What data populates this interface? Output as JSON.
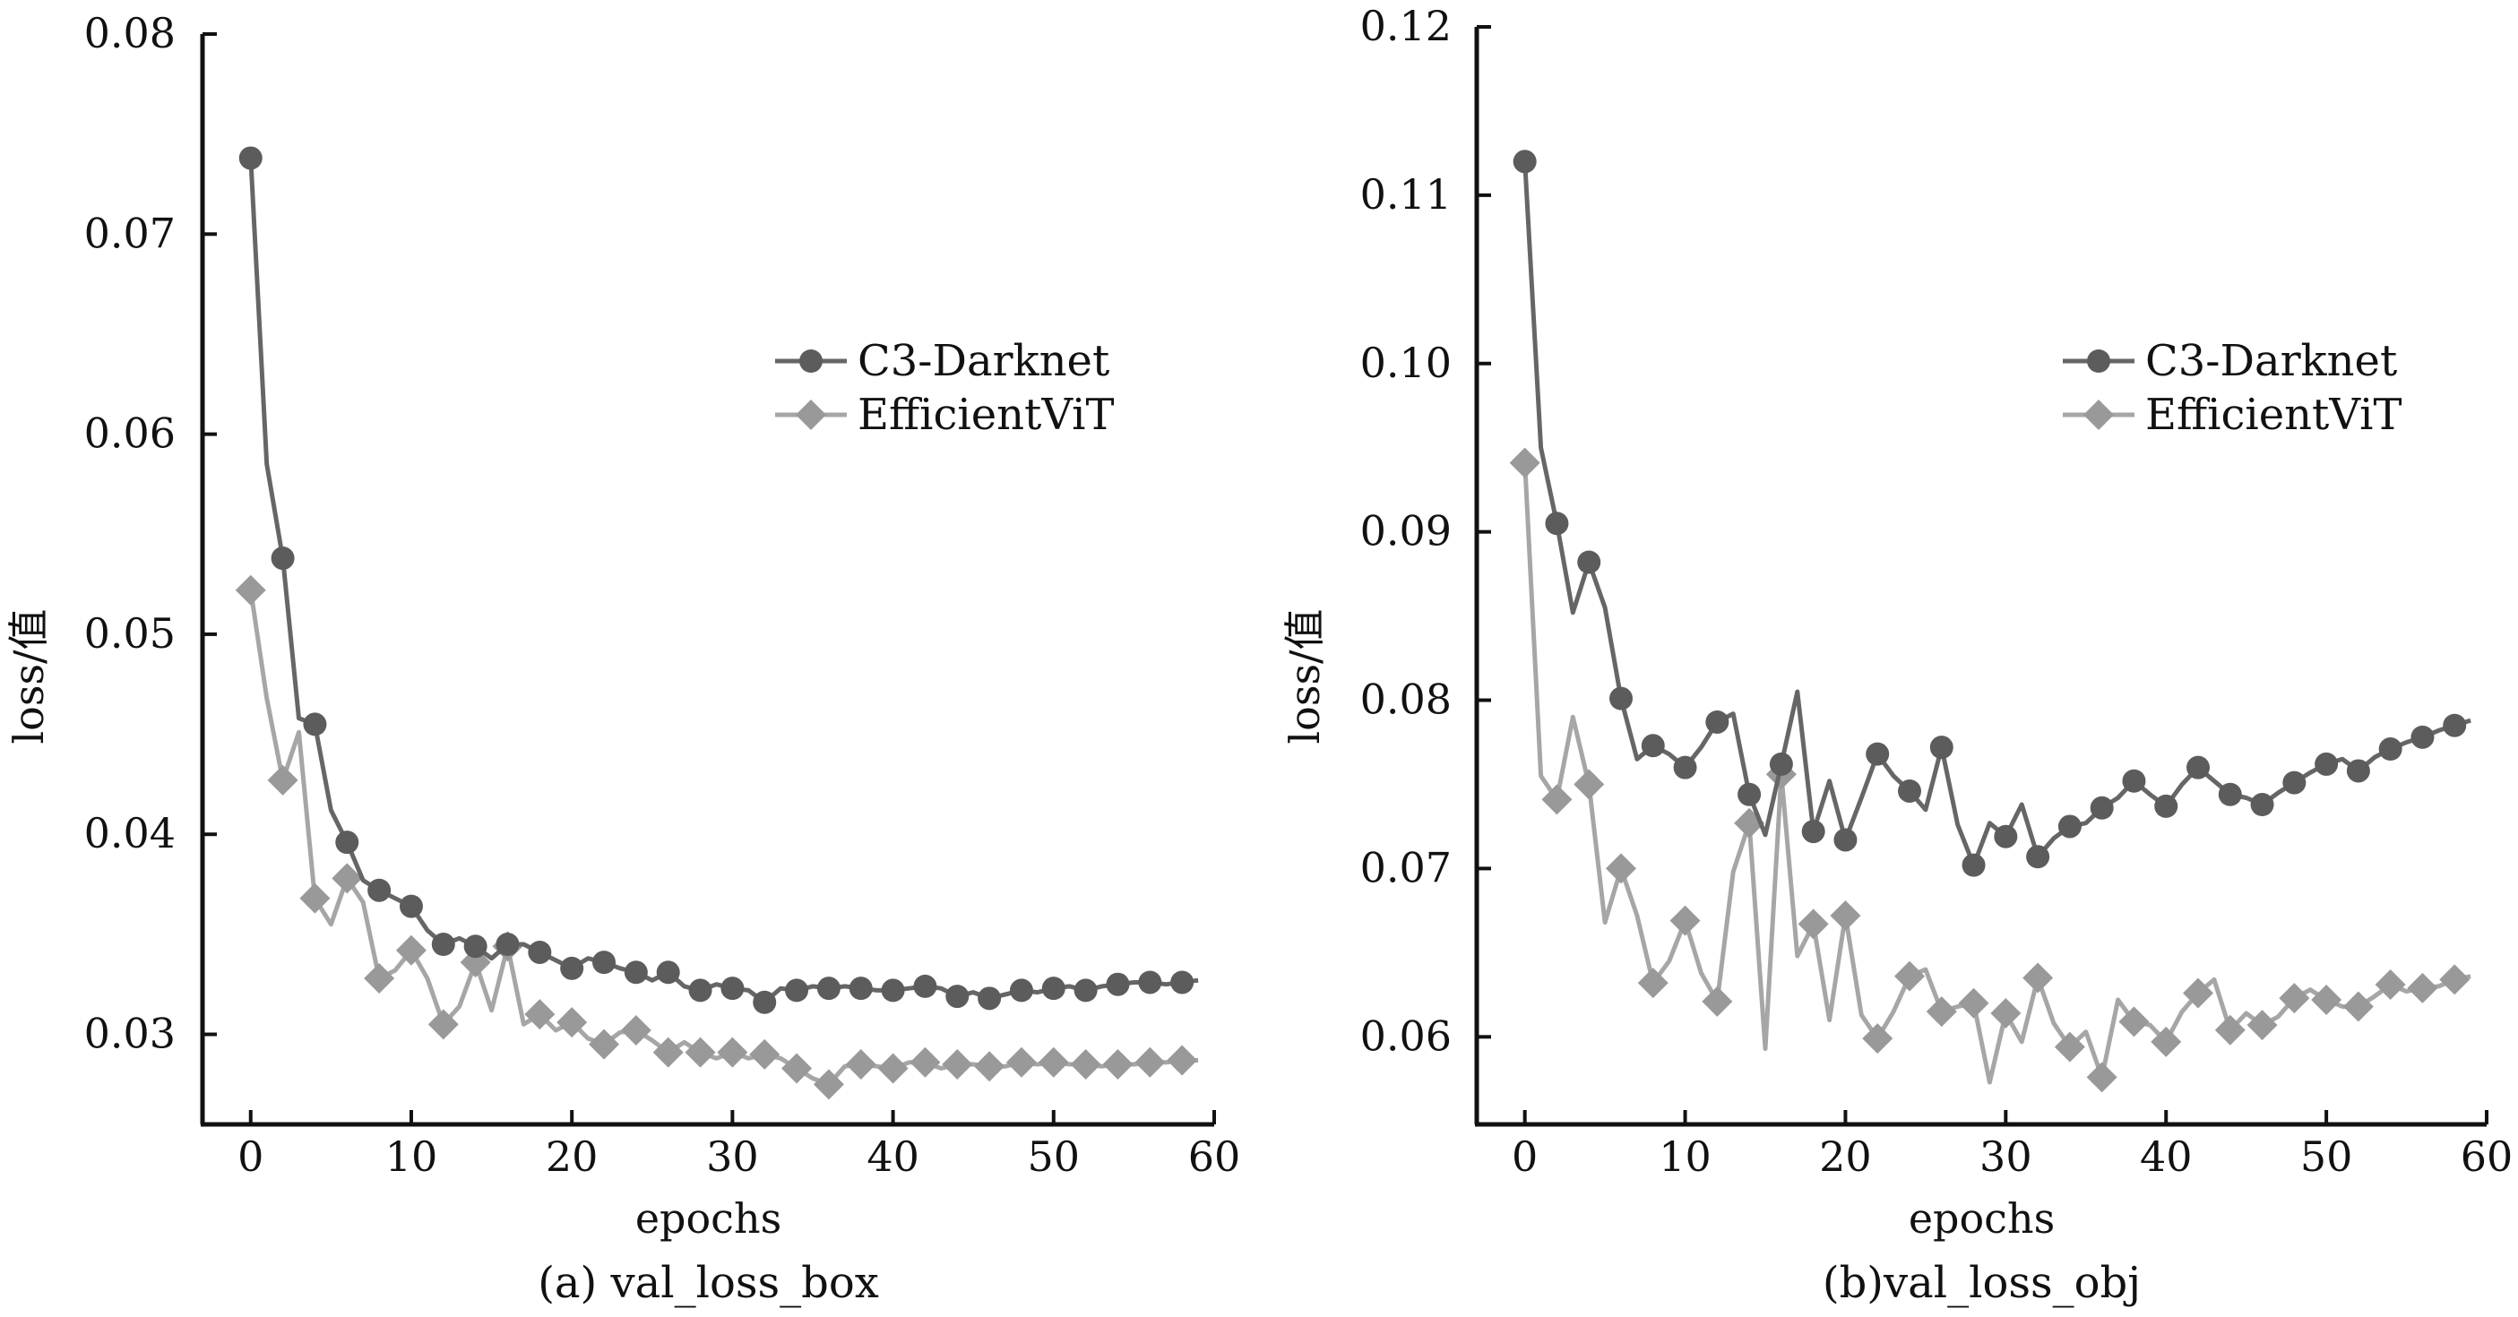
{
  "colors": {
    "c3": "#666666",
    "c3_marker": "#5c5c5c",
    "evit": "#a6a6a6",
    "evit_marker": "#999999",
    "axis": "#111111"
  },
  "chart_data": [
    {
      "type": "line",
      "caption": "(a) val_loss_box",
      "xlabel": "epochs",
      "ylabel": "loss/值",
      "xlim": [
        -3,
        60
      ],
      "ylim": [
        0.0255,
        0.08
      ],
      "xticks": [
        0,
        10,
        20,
        30,
        40,
        50,
        60
      ],
      "xtick_labels": [
        "0",
        "10",
        "20",
        "30",
        "40",
        "50",
        "60"
      ],
      "yticks": [
        0.03,
        0.04,
        0.05,
        0.06,
        0.07,
        0.08
      ],
      "ytick_labels": [
        "0.03",
        "0.04",
        "0.05",
        "0.06",
        "0.07",
        "0.08"
      ],
      "grid": false,
      "legend_position": "upper-right",
      "series": [
        {
          "name": "C3-Darknet",
          "marker": "circle",
          "x": [
            0,
            1,
            2,
            3,
            4,
            5,
            6,
            7,
            8,
            9,
            10,
            11,
            12,
            13,
            14,
            15,
            16,
            17,
            18,
            19,
            20,
            21,
            22,
            23,
            24,
            25,
            26,
            27,
            28,
            29,
            30,
            31,
            32,
            33,
            34,
            35,
            36,
            37,
            38,
            39,
            40,
            41,
            42,
            43,
            44,
            45,
            46,
            47,
            48,
            49,
            50,
            51,
            52,
            53,
            54,
            55,
            56,
            57,
            58,
            59
          ],
          "values": [
            0.0738,
            0.0585,
            0.0538,
            0.0458,
            0.0455,
            0.0412,
            0.0396,
            0.0377,
            0.0372,
            0.0368,
            0.0364,
            0.0352,
            0.0345,
            0.0348,
            0.0344,
            0.0338,
            0.0345,
            0.0345,
            0.0341,
            0.0337,
            0.0333,
            0.0338,
            0.0336,
            0.0333,
            0.0331,
            0.0327,
            0.0331,
            0.0324,
            0.0322,
            0.0325,
            0.0323,
            0.0322,
            0.0316,
            0.0323,
            0.0322,
            0.0324,
            0.0323,
            0.0324,
            0.0323,
            0.0322,
            0.0322,
            0.0323,
            0.0324,
            0.0323,
            0.0319,
            0.0321,
            0.0318,
            0.032,
            0.0322,
            0.0321,
            0.0323,
            0.0324,
            0.0322,
            0.0324,
            0.0325,
            0.0326,
            0.0326,
            0.0325,
            0.0326,
            0.0327
          ],
          "marker_every": 2
        },
        {
          "name": "EfficientViT",
          "marker": "diamond",
          "x": [
            0,
            1,
            2,
            3,
            4,
            5,
            6,
            7,
            8,
            9,
            10,
            11,
            12,
            13,
            14,
            15,
            16,
            17,
            18,
            19,
            20,
            21,
            22,
            23,
            24,
            25,
            26,
            27,
            28,
            29,
            30,
            31,
            32,
            33,
            34,
            35,
            36,
            37,
            38,
            39,
            40,
            41,
            42,
            43,
            44,
            45,
            46,
            47,
            48,
            49,
            50,
            51,
            52,
            53,
            54,
            55,
            56,
            57,
            58,
            59
          ],
          "values": [
            0.0522,
            0.0468,
            0.0427,
            0.0451,
            0.0368,
            0.0355,
            0.0378,
            0.0366,
            0.0328,
            0.0332,
            0.0342,
            0.0328,
            0.0305,
            0.0314,
            0.0336,
            0.0312,
            0.0344,
            0.0305,
            0.031,
            0.0302,
            0.0306,
            0.0298,
            0.0295,
            0.0301,
            0.0302,
            0.0297,
            0.0291,
            0.0296,
            0.0291,
            0.0288,
            0.0291,
            0.0288,
            0.029,
            0.0288,
            0.0283,
            0.0278,
            0.0275,
            0.0284,
            0.0285,
            0.0284,
            0.0283,
            0.0286,
            0.0286,
            0.0283,
            0.0285,
            0.0285,
            0.0284,
            0.0284,
            0.0286,
            0.0285,
            0.0286,
            0.0285,
            0.0285,
            0.0284,
            0.0285,
            0.0285,
            0.0286,
            0.0286,
            0.0287,
            0.0287
          ],
          "marker_every": 2
        }
      ]
    },
    {
      "type": "line",
      "caption": "(b)val_loss_obj",
      "xlabel": "epochs",
      "ylabel": "loss/值",
      "xlim": [
        -3,
        60
      ],
      "ylim": [
        0.0548,
        0.12
      ],
      "xticks": [
        0,
        10,
        20,
        30,
        40,
        50,
        60
      ],
      "xtick_labels": [
        "0",
        "10",
        "20",
        "30",
        "40",
        "50",
        "60"
      ],
      "yticks": [
        0.06,
        0.07,
        0.08,
        0.09,
        0.1,
        0.11,
        0.12
      ],
      "ytick_labels": [
        "0.06",
        "0.07",
        "0.08",
        "0.09",
        "0.10",
        "0.11",
        "0.12"
      ],
      "grid": false,
      "legend_position": "upper-right",
      "series": [
        {
          "name": "C3-Darknet",
          "marker": "circle",
          "x": [
            0,
            1,
            2,
            3,
            4,
            5,
            6,
            7,
            8,
            9,
            10,
            11,
            12,
            13,
            14,
            15,
            16,
            17,
            18,
            19,
            20,
            21,
            22,
            23,
            24,
            25,
            26,
            27,
            28,
            29,
            30,
            31,
            32,
            33,
            34,
            35,
            36,
            37,
            38,
            39,
            40,
            41,
            42,
            43,
            44,
            45,
            46,
            47,
            48,
            49,
            50,
            51,
            52,
            53,
            54,
            55,
            56,
            57,
            58,
            59
          ],
          "values": [
            0.112,
            0.095,
            0.0905,
            0.0852,
            0.0882,
            0.0855,
            0.0801,
            0.0765,
            0.0773,
            0.0768,
            0.076,
            0.0772,
            0.0787,
            0.0792,
            0.0744,
            0.072,
            0.0762,
            0.0805,
            0.0722,
            0.0752,
            0.0717,
            0.0742,
            0.0768,
            0.0755,
            0.0746,
            0.0735,
            0.0772,
            0.0726,
            0.0702,
            0.0727,
            0.0719,
            0.0738,
            0.0707,
            0.0718,
            0.0725,
            0.0727,
            0.0736,
            0.0742,
            0.0752,
            0.0744,
            0.0737,
            0.075,
            0.076,
            0.0752,
            0.0744,
            0.0742,
            0.0738,
            0.0745,
            0.0751,
            0.0757,
            0.0762,
            0.0765,
            0.0758,
            0.0766,
            0.0771,
            0.0775,
            0.0778,
            0.0782,
            0.0785,
            0.0788
          ],
          "marker_every": 2
        },
        {
          "name": "EfficientViT",
          "marker": "diamond",
          "x": [
            0,
            1,
            2,
            3,
            4,
            5,
            6,
            7,
            8,
            9,
            10,
            11,
            12,
            13,
            14,
            15,
            16,
            17,
            18,
            19,
            20,
            21,
            22,
            23,
            24,
            25,
            26,
            27,
            28,
            29,
            30,
            31,
            32,
            33,
            34,
            35,
            36,
            37,
            38,
            39,
            40,
            41,
            42,
            43,
            44,
            45,
            46,
            47,
            48,
            49,
            50,
            51,
            52,
            53,
            54,
            55,
            56,
            57,
            58,
            59
          ],
          "values": [
            0.0941,
            0.0755,
            0.0741,
            0.079,
            0.075,
            0.0668,
            0.07,
            0.0672,
            0.0632,
            0.0645,
            0.0669,
            0.0638,
            0.0621,
            0.0698,
            0.0727,
            0.0593,
            0.0756,
            0.0648,
            0.0667,
            0.061,
            0.0672,
            0.0613,
            0.0599,
            0.0615,
            0.0636,
            0.064,
            0.0615,
            0.0618,
            0.062,
            0.0573,
            0.0614,
            0.0597,
            0.0635,
            0.0608,
            0.0594,
            0.0603,
            0.0576,
            0.0622,
            0.0609,
            0.0607,
            0.0597,
            0.0615,
            0.0626,
            0.0634,
            0.0604,
            0.0614,
            0.0607,
            0.0612,
            0.0623,
            0.0628,
            0.0622,
            0.0618,
            0.0618,
            0.0624,
            0.0631,
            0.0627,
            0.0629,
            0.063,
            0.0634,
            0.0636
          ],
          "marker_every": 2
        }
      ]
    }
  ]
}
